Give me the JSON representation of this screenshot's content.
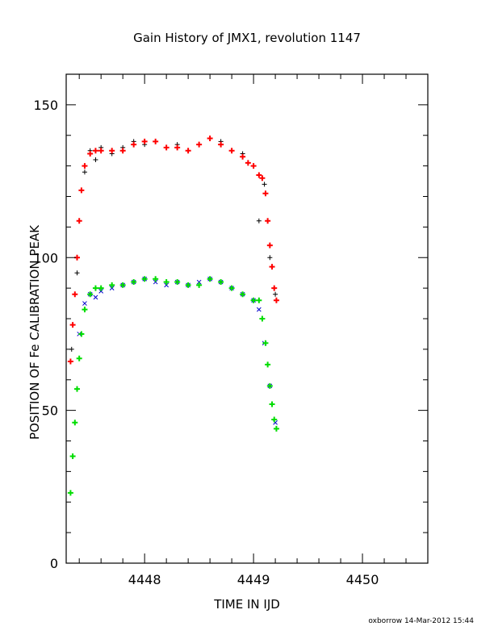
{
  "chart_data": {
    "type": "scatter",
    "title": "Gain History of JMX1, revolution 1147",
    "xlabel": "TIME IN IJD",
    "ylabel": "POSITION OF Fe CALIBRATION PEAK",
    "xlim": [
      4447.28,
      4450.6
    ],
    "ylim": [
      0,
      160
    ],
    "x_ticks": [
      4448,
      4449,
      4450
    ],
    "x_tick_labels": [
      "4448",
      "4449",
      "4450"
    ],
    "y_ticks": [
      0,
      50,
      100,
      150
    ],
    "y_tick_labels": [
      "0",
      "50",
      "100",
      "150"
    ],
    "grid": false,
    "legend": "none",
    "colors": {
      "upper_raw": "#000000",
      "upper_smooth": "#ff0000",
      "lower_raw": "#0000cc",
      "lower_smooth": "#00dd00"
    },
    "series": [
      {
        "marker": "plus",
        "x": [
          4447.33,
          4447.38,
          4447.45,
          4447.5,
          4447.55,
          4447.6,
          4447.7,
          4447.8,
          4447.9,
          4448.0,
          4448.1,
          4448.2,
          4448.3,
          4448.4,
          4448.5,
          4448.6,
          4448.7,
          4448.8,
          4448.9,
          4449.0,
          4449.05,
          4449.1,
          4449.15,
          4449.2
        ],
        "y": [
          70,
          95,
          128,
          135,
          132,
          136,
          134,
          136,
          138,
          137,
          138,
          136,
          137,
          135,
          137,
          139,
          138,
          135,
          134,
          130,
          112,
          124,
          100,
          88
        ]
      },
      {
        "marker": "plus",
        "x": [
          4447.32,
          4447.34,
          4447.36,
          4447.38,
          4447.4,
          4447.42,
          4447.45,
          4447.5,
          4447.55,
          4447.6,
          4447.7,
          4447.8,
          4447.9,
          4448.0,
          4448.1,
          4448.2,
          4448.3,
          4448.4,
          4448.5,
          4448.6,
          4448.7,
          4448.8,
          4448.9,
          4448.95,
          4449.0,
          4449.05,
          4449.08,
          4449.11,
          4449.13,
          4449.15,
          4449.17,
          4449.19,
          4449.21
        ],
        "y": [
          66,
          78,
          88,
          100,
          112,
          122,
          130,
          134,
          135,
          135,
          135,
          135,
          137,
          138,
          138,
          136,
          136,
          135,
          137,
          139,
          137,
          135,
          133,
          131,
          130,
          127,
          126,
          121,
          112,
          104,
          97,
          90,
          86
        ]
      },
      {
        "marker": "cross",
        "x": [
          4447.4,
          4447.45,
          4447.5,
          4447.55,
          4447.6,
          4447.7,
          4447.8,
          4447.9,
          4448.0,
          4448.1,
          4448.2,
          4448.3,
          4448.4,
          4448.5,
          4448.6,
          4448.7,
          4448.8,
          4448.9,
          4449.0,
          4449.05,
          4449.1,
          4449.15,
          4449.2
        ],
        "y": [
          75,
          85,
          88,
          87,
          89,
          90,
          91,
          92,
          93,
          92,
          91,
          92,
          91,
          92,
          93,
          92,
          90,
          88,
          86,
          83,
          72,
          58,
          46
        ]
      },
      {
        "marker": "plus",
        "x": [
          4447.32,
          4447.34,
          4447.36,
          4447.38,
          4447.4,
          4447.42,
          4447.45,
          4447.5,
          4447.55,
          4447.6,
          4447.7,
          4447.8,
          4447.9,
          4448.0,
          4448.1,
          4448.2,
          4448.3,
          4448.4,
          4448.5,
          4448.6,
          4448.7,
          4448.8,
          4448.9,
          4449.0,
          4449.05,
          4449.08,
          4449.11,
          4449.13,
          4449.15,
          4449.17,
          4449.19,
          4449.21
        ],
        "y": [
          23,
          35,
          46,
          57,
          67,
          75,
          83,
          88,
          90,
          90,
          91,
          91,
          92,
          93,
          93,
          92,
          92,
          91,
          91,
          93,
          92,
          90,
          88,
          86,
          86,
          80,
          72,
          65,
          58,
          52,
          47,
          44
        ]
      }
    ]
  },
  "footer": {
    "stamp": "oxborrow 14-Mar-2012 15:44"
  }
}
